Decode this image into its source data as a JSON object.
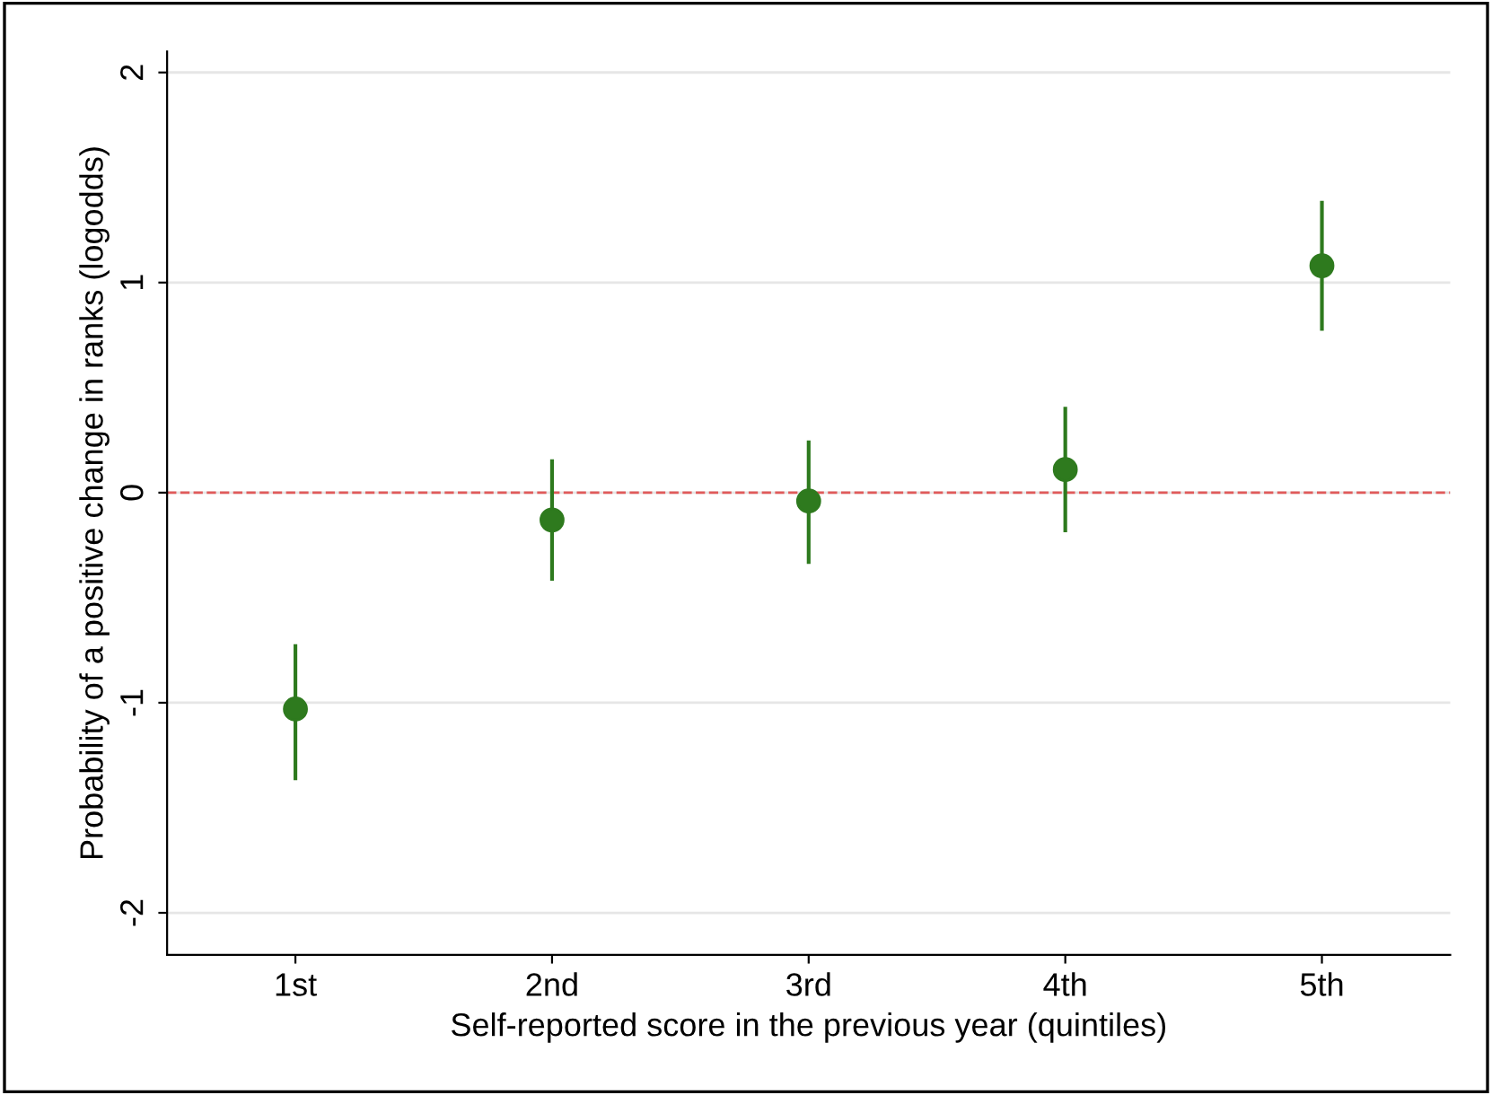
{
  "chart_data": {
    "type": "scatter",
    "xlabel": "Self-reported score in the previous year (quintiles)",
    "ylabel": "Probability of a positive change in ranks (logodds)",
    "categories": [
      "1st",
      "2nd",
      "3rd",
      "4th",
      "5th"
    ],
    "series": [
      {
        "color": "#2e7a1e",
        "values": [
          -1.03,
          -0.13,
          -0.04,
          0.11,
          1.08
        ],
        "errors": [
          [
            -1.36,
            -0.73
          ],
          [
            -0.41,
            0.15
          ],
          [
            -0.33,
            0.24
          ],
          [
            -0.18,
            0.4
          ],
          [
            0.78,
            1.38
          ]
        ]
      }
    ],
    "ylim": [
      -2.2,
      2.1
    ],
    "yticks": [
      {
        "value": -2,
        "label": "-2"
      },
      {
        "value": -1,
        "label": "-1"
      },
      0,
      1,
      2
    ],
    "grid": "y",
    "marker": "circle",
    "legend": false,
    "ref_lines": [
      {
        "axis": "y",
        "value": 0,
        "color": "#e05a5a",
        "line_style": "dashed"
      }
    ]
  }
}
